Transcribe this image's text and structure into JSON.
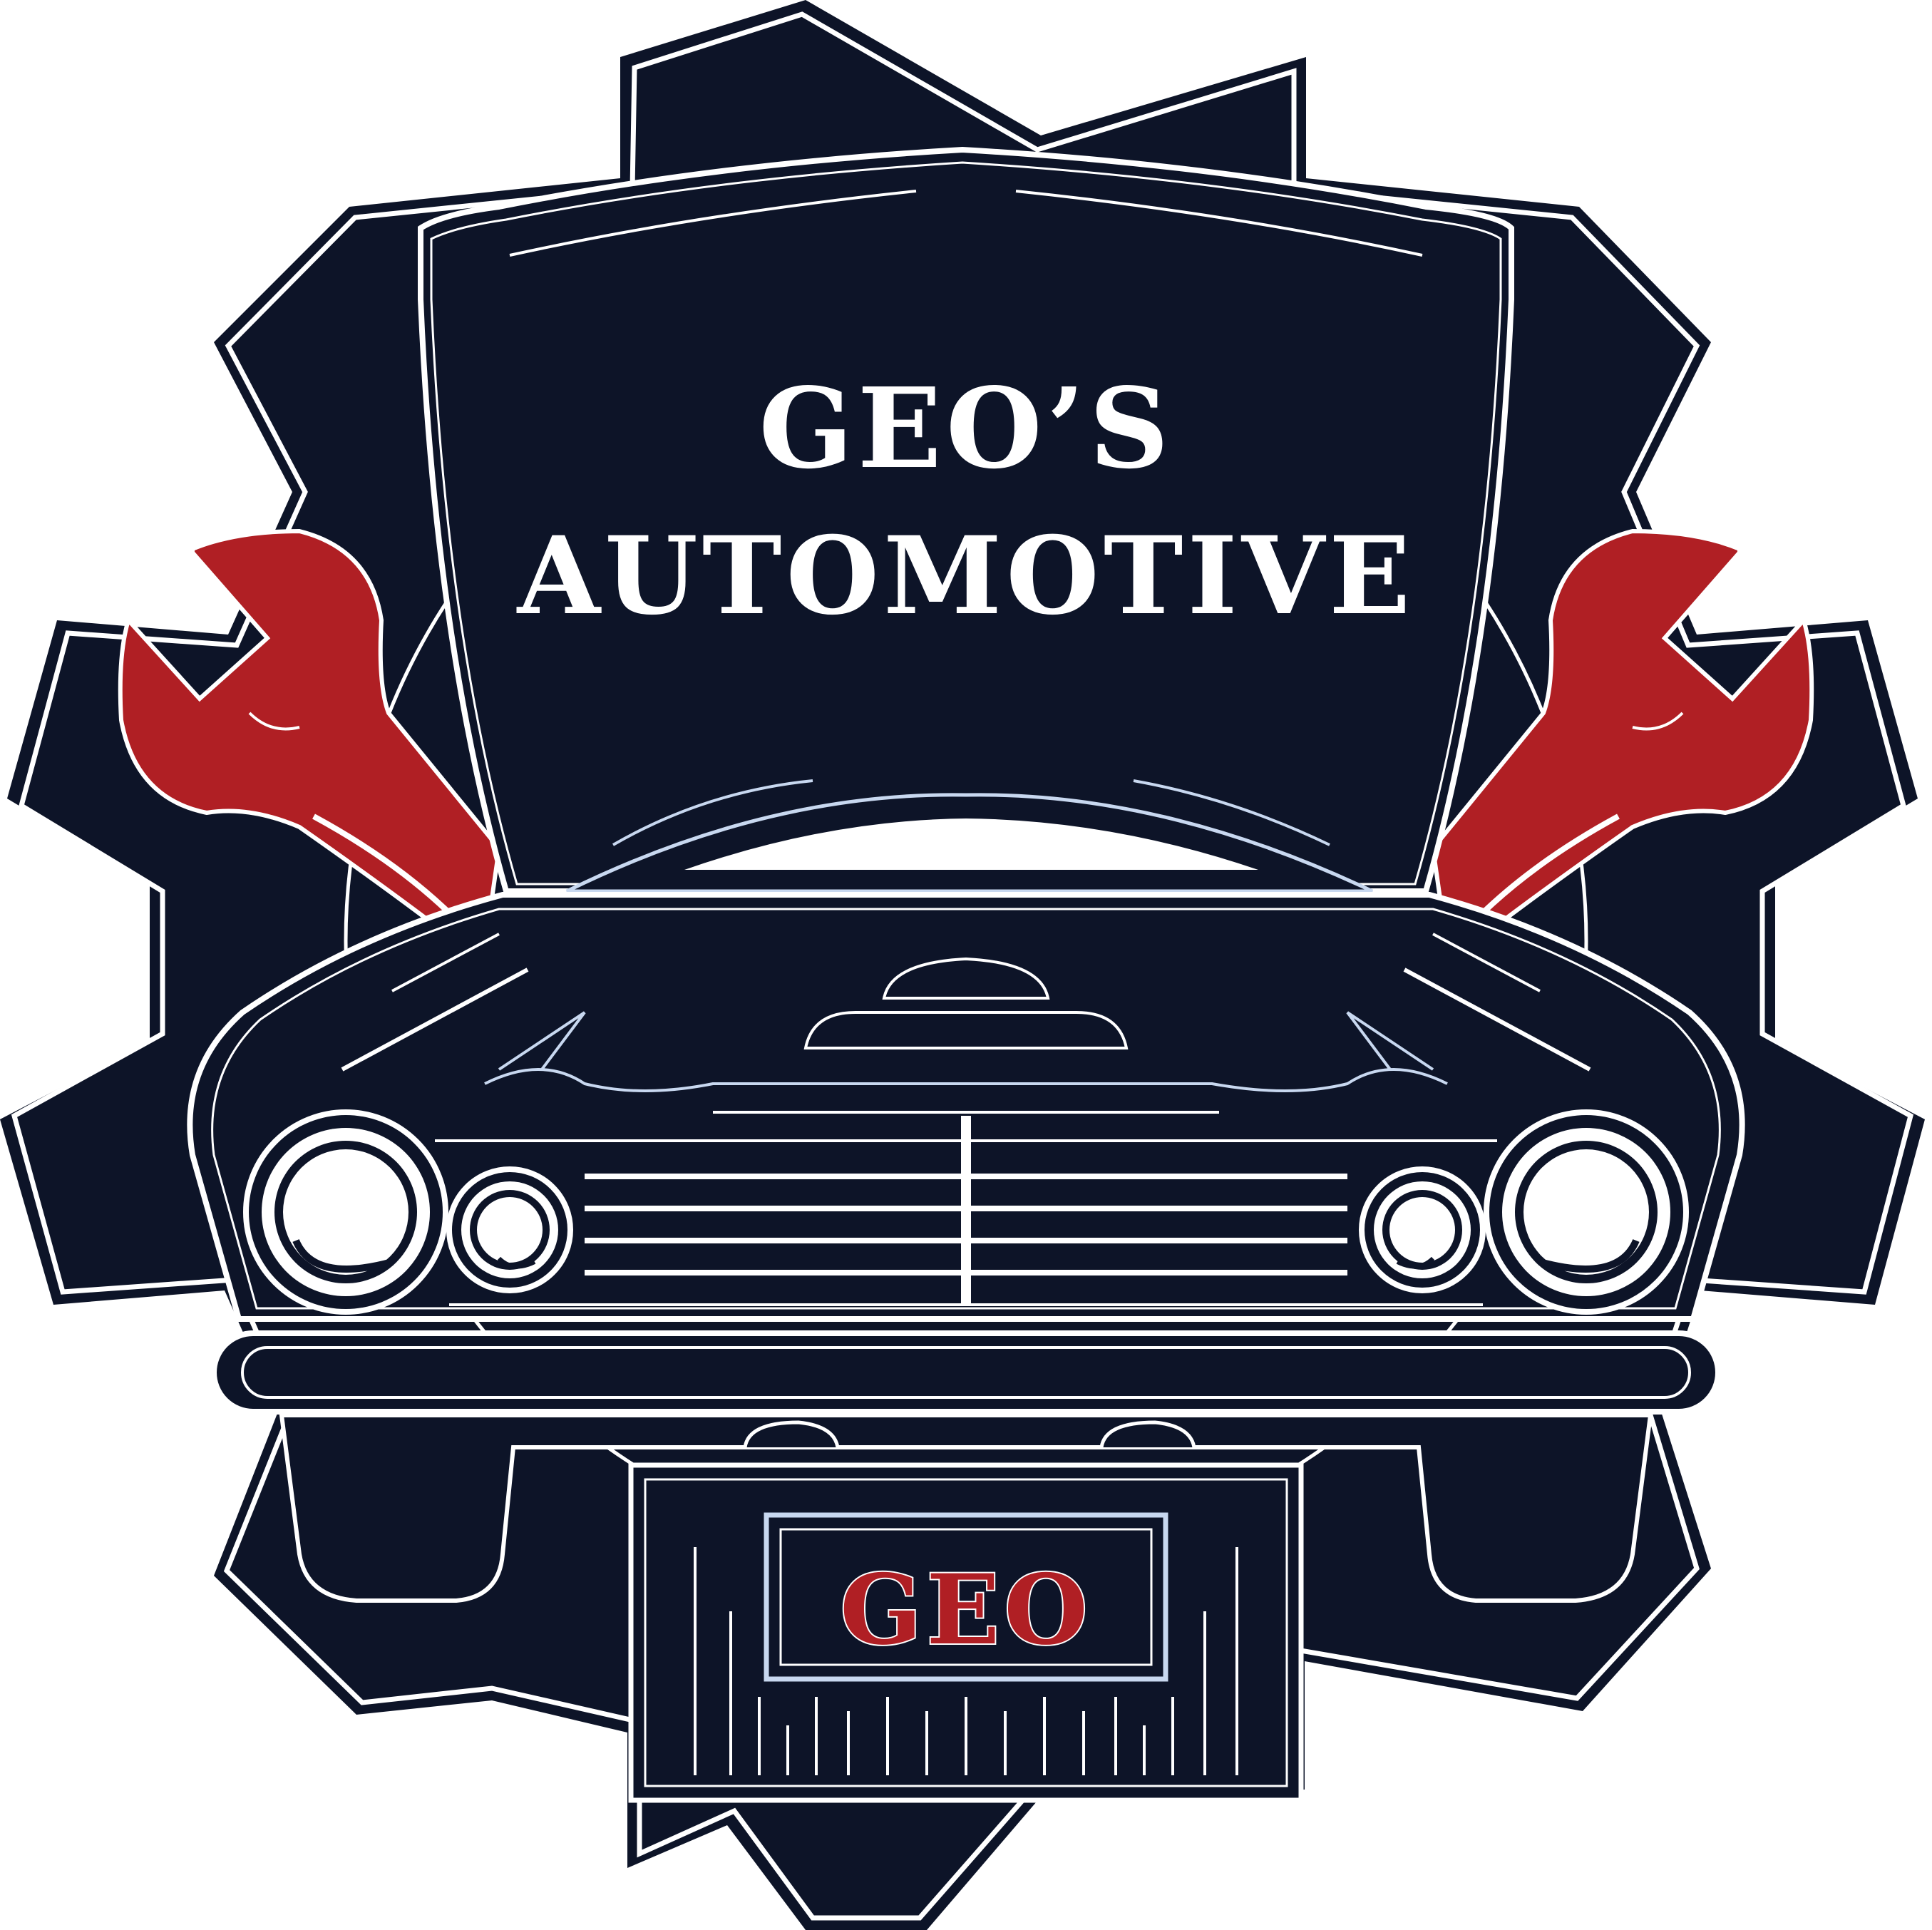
{
  "logo": {
    "title_line1": "GEO’S",
    "title_line2": "AUTOMOTIVE",
    "plate_text": "GEO"
  },
  "colors": {
    "navy": "#0d1428",
    "red": "#b01f24",
    "white": "#ffffff",
    "pale_blue": "#c8d8f0",
    "background": "#ffffff"
  },
  "icons": [
    "gear-icon",
    "car-icon",
    "wrench-icon",
    "headlight-icon",
    "license-plate-icon"
  ]
}
